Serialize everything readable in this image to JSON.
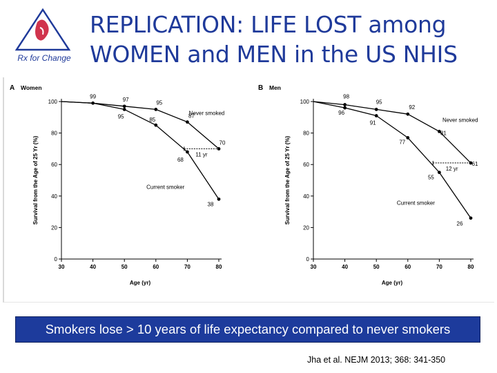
{
  "slide": {
    "title_line1": "REPLICATION: LIFE LOST among",
    "title_line2": "WOMEN and MEN in the US NHIS",
    "logo_text": "Rx for Change",
    "banner": "Smokers lose > 10 years of life expectancy compared to never smokers",
    "citation": "Jha et al. NEJM 2013; 368: 341-350",
    "colors": {
      "title": "#1f3a9a",
      "banner_bg": "#1d3b9c",
      "banner_text": "#ffffff",
      "logo_blue": "#1f3a9a",
      "logo_red": "#c8102e"
    }
  },
  "chart_data": [
    {
      "type": "line",
      "panel_letter": "A",
      "panel_title": "Women",
      "xlabel": "Age (yr)",
      "ylabel": "Survival from the Age of 25 Yr (%)",
      "xlim": [
        30,
        80
      ],
      "ylim": [
        0,
        100
      ],
      "xticks": [
        30,
        40,
        50,
        60,
        70,
        80
      ],
      "yticks": [
        0,
        20,
        40,
        60,
        80,
        100
      ],
      "series": [
        {
          "name": "Never smoked",
          "x": [
            30,
            40,
            50,
            60,
            70,
            80
          ],
          "y": [
            100,
            99,
            97,
            95,
            87,
            70
          ],
          "labeled_points": [
            40,
            50,
            60,
            70,
            80
          ]
        },
        {
          "name": "Current smoker",
          "x": [
            30,
            40,
            50,
            60,
            70,
            80
          ],
          "y": [
            100,
            99,
            95,
            85,
            68,
            38
          ],
          "labeled_points": [
            50,
            60,
            70,
            80
          ]
        }
      ],
      "gap_annotation": {
        "label": "11 yr",
        "y": 70,
        "x_from": 69,
        "x_to": 80
      }
    },
    {
      "type": "line",
      "panel_letter": "B",
      "panel_title": "Men",
      "xlabel": "Age (yr)",
      "ylabel": "Survival from the Age of 25 Yr (%)",
      "xlim": [
        30,
        80
      ],
      "ylim": [
        0,
        100
      ],
      "xticks": [
        30,
        40,
        50,
        60,
        70,
        80
      ],
      "yticks": [
        0,
        20,
        40,
        60,
        80,
        100
      ],
      "series": [
        {
          "name": "Never smoked",
          "x": [
            30,
            40,
            50,
            60,
            70,
            80
          ],
          "y": [
            100,
            98,
            95,
            92,
            81,
            61
          ],
          "labeled_points": [
            40,
            50,
            60,
            70,
            80
          ]
        },
        {
          "name": "Current smoker",
          "x": [
            30,
            40,
            50,
            60,
            70,
            80
          ],
          "y": [
            100,
            96,
            91,
            77,
            55,
            26
          ],
          "labeled_points": [
            40,
            50,
            60,
            70,
            80
          ]
        }
      ],
      "gap_annotation": {
        "label": "12 yr",
        "y": 61,
        "x_from": 68,
        "x_to": 80
      }
    }
  ]
}
